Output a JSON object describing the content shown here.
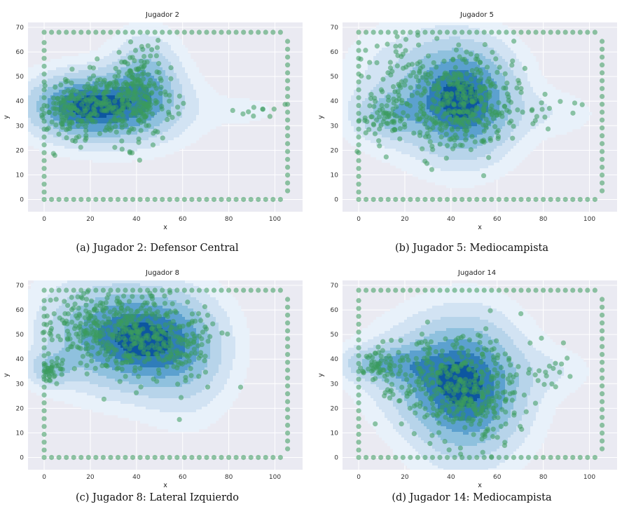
{
  "figure": {
    "captions": [
      "(a) Jugador 2: Defensor Central",
      "(b) Jugador 5: Mediocampista",
      "(c) Jugador 8: Lateral Izquierdo",
      "(d) Jugador 14: Mediocampista"
    ]
  },
  "colors": {
    "plot_background": "#eaeaf2",
    "grid": "#ffffff",
    "scatter": "#3a9b5c",
    "density_levels": [
      "#e8f1fa",
      "#d2e3f3",
      "#b7d4ea",
      "#8fc1de",
      "#5ca1cf",
      "#2f7dba",
      "#0d56a0"
    ]
  },
  "chart_data": [
    {
      "type": "scatter",
      "overlay": "kde-density",
      "title": "Jugador 2",
      "xlabel": "x",
      "ylabel": "y",
      "xlim": [
        -7,
        112
      ],
      "ylim": [
        -5,
        72
      ],
      "xticks": [
        0,
        20,
        40,
        60,
        80,
        100
      ],
      "yticks": [
        0,
        10,
        20,
        30,
        40,
        50,
        60,
        70
      ],
      "grid": true,
      "field_boundary": {
        "x": [
          0,
          105
        ],
        "y": [
          0,
          68
        ]
      },
      "clusters": [
        {
          "center": [
            30,
            38
          ],
          "spread": [
            13,
            7
          ],
          "count": 300
        },
        {
          "center": [
            42,
            48
          ],
          "spread": [
            6,
            8
          ],
          "count": 110
        },
        {
          "center": [
            10,
            37
          ],
          "spread": [
            5,
            5
          ],
          "count": 80
        },
        {
          "center": [
            88,
            36
          ],
          "spread": [
            7,
            3
          ],
          "count": 10
        }
      ],
      "hotspots": [
        {
          "center": [
            14,
            38
          ],
          "sigma": [
            9,
            5
          ],
          "weight": 1.0
        },
        {
          "center": [
            32,
            37
          ],
          "sigma": [
            12,
            6
          ],
          "weight": 1.0
        },
        {
          "center": [
            44,
            50
          ],
          "sigma": [
            6,
            7
          ],
          "weight": 0.7
        },
        {
          "center": [
            88,
            36
          ],
          "sigma": [
            7,
            3
          ],
          "weight": 0.12
        }
      ]
    },
    {
      "type": "scatter",
      "overlay": "kde-density",
      "title": "Jugador 5",
      "xlabel": "x",
      "ylabel": "y",
      "xlim": [
        -7,
        112
      ],
      "ylim": [
        -5,
        72
      ],
      "xticks": [
        0,
        20,
        40,
        60,
        80,
        100
      ],
      "yticks": [
        0,
        10,
        20,
        30,
        40,
        50,
        60,
        70
      ],
      "grid": true,
      "field_boundary": {
        "x": [
          0,
          105
        ],
        "y": [
          0,
          68
        ]
      },
      "clusters": [
        {
          "center": [
            45,
            40
          ],
          "spread": [
            11,
            10
          ],
          "count": 380
        },
        {
          "center": [
            20,
            45
          ],
          "spread": [
            10,
            12
          ],
          "count": 100
        },
        {
          "center": [
            10,
            33
          ],
          "spread": [
            5,
            5
          ],
          "count": 40
        },
        {
          "center": [
            85,
            35
          ],
          "spread": [
            8,
            5
          ],
          "count": 15
        }
      ],
      "hotspots": [
        {
          "center": [
            46,
            40
          ],
          "sigma": [
            9,
            9
          ],
          "weight": 1.0
        },
        {
          "center": [
            12,
            34
          ],
          "sigma": [
            6,
            4
          ],
          "weight": 0.35
        },
        {
          "center": [
            25,
            45
          ],
          "sigma": [
            12,
            10
          ],
          "weight": 0.3
        },
        {
          "center": [
            85,
            35
          ],
          "sigma": [
            8,
            4
          ],
          "weight": 0.12
        }
      ]
    },
    {
      "type": "scatter",
      "overlay": "kde-density",
      "title": "Jugador 8",
      "xlabel": "x",
      "ylabel": "y",
      "xlim": [
        -7,
        112
      ],
      "ylim": [
        -5,
        72
      ],
      "xticks": [
        0,
        20,
        40,
        60,
        80,
        100
      ],
      "yticks": [
        0,
        10,
        20,
        30,
        40,
        50,
        60,
        70
      ],
      "grid": true,
      "field_boundary": {
        "x": [
          0,
          105
        ],
        "y": [
          0,
          68
        ]
      },
      "clusters": [
        {
          "center": [
            40,
            50
          ],
          "spread": [
            14,
            9
          ],
          "count": 360
        },
        {
          "center": [
            15,
            52
          ],
          "spread": [
            9,
            9
          ],
          "count": 110
        },
        {
          "center": [
            3,
            36
          ],
          "spread": [
            3,
            3
          ],
          "count": 40
        },
        {
          "center": [
            62,
            45
          ],
          "spread": [
            6,
            9
          ],
          "count": 60
        }
      ],
      "hotspots": [
        {
          "center": [
            43,
            48
          ],
          "sigma": [
            11,
            8
          ],
          "weight": 1.0
        },
        {
          "center": [
            18,
            52
          ],
          "sigma": [
            10,
            9
          ],
          "weight": 0.35
        },
        {
          "center": [
            3,
            36
          ],
          "sigma": [
            4,
            3
          ],
          "weight": 0.4
        },
        {
          "center": [
            62,
            40
          ],
          "sigma": [
            8,
            10
          ],
          "weight": 0.3
        }
      ]
    },
    {
      "type": "scatter",
      "overlay": "kde-density",
      "title": "Jugador 14",
      "xlabel": "x",
      "ylabel": "y",
      "xlim": [
        -7,
        112
      ],
      "ylim": [
        -5,
        72
      ],
      "xticks": [
        0,
        20,
        40,
        60,
        80,
        100
      ],
      "yticks": [
        0,
        10,
        20,
        30,
        40,
        50,
        60,
        70
      ],
      "grid": true,
      "field_boundary": {
        "x": [
          0,
          105
        ],
        "y": [
          0,
          68
        ]
      },
      "clusters": [
        {
          "center": [
            47,
            28
          ],
          "spread": [
            11,
            11
          ],
          "count": 360
        },
        {
          "center": [
            20,
            35
          ],
          "spread": [
            10,
            8
          ],
          "count": 80
        },
        {
          "center": [
            8,
            38
          ],
          "spread": [
            5,
            3
          ],
          "count": 40
        },
        {
          "center": [
            85,
            35
          ],
          "spread": [
            6,
            4
          ],
          "count": 15
        }
      ],
      "hotspots": [
        {
          "center": [
            47,
            28
          ],
          "sigma": [
            10,
            11
          ],
          "weight": 1.0
        },
        {
          "center": [
            10,
            38
          ],
          "sigma": [
            8,
            3
          ],
          "weight": 0.4
        },
        {
          "center": [
            25,
            35
          ],
          "sigma": [
            10,
            8
          ],
          "weight": 0.3
        },
        {
          "center": [
            85,
            35
          ],
          "sigma": [
            7,
            4
          ],
          "weight": 0.12
        }
      ]
    }
  ]
}
